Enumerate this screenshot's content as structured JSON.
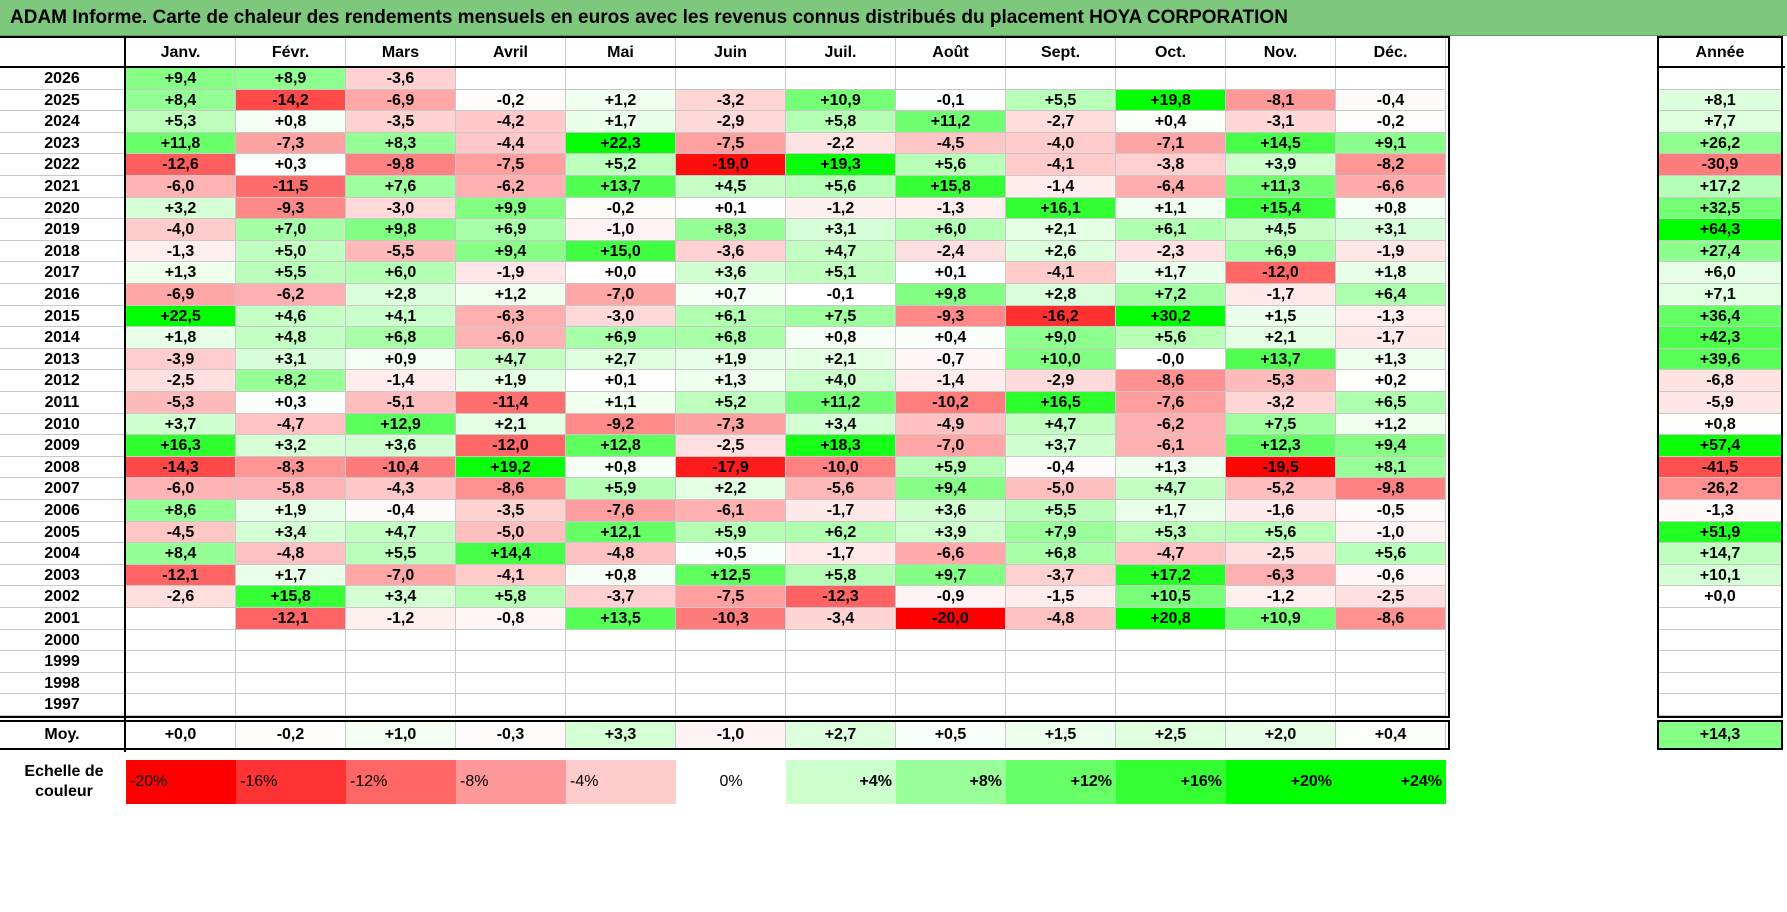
{
  "title": "ADAM Informe. Carte de chaleur des rendements mensuels en euros avec les revenus connus distribués du placement HOYA CORPORATION",
  "chart_data": {
    "type": "heatmap",
    "months": [
      "Janv.",
      "Févr.",
      "Mars",
      "Avril",
      "Mai",
      "Juin",
      "Juil.",
      "Août",
      "Sept.",
      "Oct.",
      "Nov.",
      "Déc."
    ],
    "year_header": "Année",
    "rows": [
      {
        "year": "2026",
        "months": [
          "+9,4",
          "+8,9",
          "-3,6",
          "",
          "",
          "",
          "",
          "",
          "",
          "",
          "",
          ""
        ],
        "annual": ""
      },
      {
        "year": "2025",
        "months": [
          "+8,4",
          "-14,2",
          "-6,9",
          "-0,2",
          "+1,2",
          "-3,2",
          "+10,9",
          "-0,1",
          "+5,5",
          "+19,8",
          "-8,1",
          "-0,4"
        ],
        "annual": "+8,1"
      },
      {
        "year": "2024",
        "months": [
          "+5,3",
          "+0,8",
          "-3,5",
          "-4,2",
          "+1,7",
          "-2,9",
          "+5,8",
          "+11,2",
          "-2,7",
          "+0,4",
          "-3,1",
          "-0,2"
        ],
        "annual": "+7,7"
      },
      {
        "year": "2023",
        "months": [
          "+11,8",
          "-7,3",
          "+8,3",
          "-4,4",
          "+22,3",
          "-7,5",
          "-2,2",
          "-4,5",
          "-4,0",
          "-7,1",
          "+14,5",
          "+9,1"
        ],
        "annual": "+26,2"
      },
      {
        "year": "2022",
        "months": [
          "-12,6",
          "+0,3",
          "-9,8",
          "-7,5",
          "+5,2",
          "-19,0",
          "+19,3",
          "+5,6",
          "-4,1",
          "-3,8",
          "+3,9",
          "-8,2"
        ],
        "annual": "-30,9"
      },
      {
        "year": "2021",
        "months": [
          "-6,0",
          "-11,5",
          "+7,6",
          "-6,2",
          "+13,7",
          "+4,5",
          "+5,6",
          "+15,8",
          "-1,4",
          "-6,4",
          "+11,3",
          "-6,6"
        ],
        "annual": "+17,2"
      },
      {
        "year": "2020",
        "months": [
          "+3,2",
          "-9,3",
          "-3,0",
          "+9,9",
          "-0,2",
          "+0,1",
          "-1,2",
          "-1,3",
          "+16,1",
          "+1,1",
          "+15,4",
          "+0,8"
        ],
        "annual": "+32,5"
      },
      {
        "year": "2019",
        "months": [
          "-4,0",
          "+7,0",
          "+9,8",
          "+6,9",
          "-1,0",
          "+8,3",
          "+3,1",
          "+6,0",
          "+2,1",
          "+6,1",
          "+4,5",
          "+3,1"
        ],
        "annual": "+64,3"
      },
      {
        "year": "2018",
        "months": [
          "-1,3",
          "+5,0",
          "-5,5",
          "+9,4",
          "+15,0",
          "-3,6",
          "+4,7",
          "-2,4",
          "+2,6",
          "-2,3",
          "+6,9",
          "-1,9"
        ],
        "annual": "+27,4"
      },
      {
        "year": "2017",
        "months": [
          "+1,3",
          "+5,5",
          "+6,0",
          "-1,9",
          "+0,0",
          "+3,6",
          "+5,1",
          "+0,1",
          "-4,1",
          "+1,7",
          "-12,0",
          "+1,8"
        ],
        "annual": "+6,0"
      },
      {
        "year": "2016",
        "months": [
          "-6,9",
          "-6,2",
          "+2,8",
          "+1,2",
          "-7,0",
          "+0,7",
          "-0,1",
          "+9,8",
          "+2,8",
          "+7,2",
          "-1,7",
          "+6,4"
        ],
        "annual": "+7,1"
      },
      {
        "year": "2015",
        "months": [
          "+22,5",
          "+4,6",
          "+4,1",
          "-6,3",
          "-3,0",
          "+6,1",
          "+7,5",
          "-9,3",
          "-16,2",
          "+30,2",
          "+1,5",
          "-1,3"
        ],
        "annual": "+36,4"
      },
      {
        "year": "2014",
        "months": [
          "+1,8",
          "+4,8",
          "+6,8",
          "-6,0",
          "+6,9",
          "+6,8",
          "+0,8",
          "+0,4",
          "+9,0",
          "+5,6",
          "+2,1",
          "-1,7"
        ],
        "annual": "+42,3"
      },
      {
        "year": "2013",
        "months": [
          "-3,9",
          "+3,1",
          "+0,9",
          "+4,7",
          "+2,7",
          "+1,9",
          "+2,1",
          "-0,7",
          "+10,0",
          "-0,0",
          "+13,7",
          "+1,3"
        ],
        "annual": "+39,6"
      },
      {
        "year": "2012",
        "months": [
          "-2,5",
          "+8,2",
          "-1,4",
          "+1,9",
          "+0,1",
          "+1,3",
          "+4,0",
          "-1,4",
          "-2,9",
          "-8,6",
          "-5,3",
          "+0,2"
        ],
        "annual": "-6,8"
      },
      {
        "year": "2011",
        "months": [
          "-5,3",
          "+0,3",
          "-5,1",
          "-11,4",
          "+1,1",
          "+5,2",
          "+11,2",
          "-10,2",
          "+16,5",
          "-7,6",
          "-3,2",
          "+6,5"
        ],
        "annual": "-5,9"
      },
      {
        "year": "2010",
        "months": [
          "+3,7",
          "-4,7",
          "+12,9",
          "+2,1",
          "-9,2",
          "-7,3",
          "+3,4",
          "-4,9",
          "+4,7",
          "-6,2",
          "+7,5",
          "+1,2"
        ],
        "annual": "+0,8"
      },
      {
        "year": "2009",
        "months": [
          "+16,3",
          "+3,2",
          "+3,6",
          "-12,0",
          "+12,8",
          "-2,5",
          "+18,3",
          "-7,0",
          "+3,7",
          "-6,1",
          "+12,3",
          "+9,4"
        ],
        "annual": "+57,4"
      },
      {
        "year": "2008",
        "months": [
          "-14,3",
          "-8,3",
          "-10,4",
          "+19,2",
          "+0,8",
          "-17,9",
          "-10,0",
          "+5,9",
          "-0,4",
          "+1,3",
          "-19,5",
          "+8,1"
        ],
        "annual": "-41,5"
      },
      {
        "year": "2007",
        "months": [
          "-6,0",
          "-5,8",
          "-4,3",
          "-8,6",
          "+5,9",
          "+2,2",
          "-5,6",
          "+9,4",
          "-5,0",
          "+4,7",
          "-5,2",
          "-9,8"
        ],
        "annual": "-26,2"
      },
      {
        "year": "2006",
        "months": [
          "+8,6",
          "+1,9",
          "-0,4",
          "-3,5",
          "-7,6",
          "-6,1",
          "-1,7",
          "+3,6",
          "+5,5",
          "+1,7",
          "-1,6",
          "-0,5"
        ],
        "annual": "-1,3"
      },
      {
        "year": "2005",
        "months": [
          "-4,5",
          "+3,4",
          "+4,7",
          "-5,0",
          "+12,1",
          "+5,9",
          "+6,2",
          "+3,9",
          "+7,9",
          "+5,3",
          "+5,6",
          "-1,0"
        ],
        "annual": "+51,9"
      },
      {
        "year": "2004",
        "months": [
          "+8,4",
          "-4,8",
          "+5,5",
          "+14,4",
          "-4,8",
          "+0,5",
          "-1,7",
          "-6,6",
          "+6,8",
          "-4,7",
          "-2,5",
          "+5,6"
        ],
        "annual": "+14,7"
      },
      {
        "year": "2003",
        "months": [
          "-12,1",
          "+1,7",
          "-7,0",
          "-4,1",
          "+0,8",
          "+12,5",
          "+5,8",
          "+9,7",
          "-3,7",
          "+17,2",
          "-6,3",
          "-0,6"
        ],
        "annual": "+10,1"
      },
      {
        "year": "2002",
        "months": [
          "-2,6",
          "+15,8",
          "+3,4",
          "+5,8",
          "-3,7",
          "-7,5",
          "-12,3",
          "-0,9",
          "-1,5",
          "+10,5",
          "-1,2",
          "-2,5"
        ],
        "annual": "+0,0"
      },
      {
        "year": "2001",
        "months": [
          "",
          "-12,1",
          "-1,2",
          "-0,8",
          "+13,5",
          "-10,3",
          "-3,4",
          "-20,0",
          "-4,8",
          "+20,8",
          "+10,9",
          "-8,6"
        ],
        "annual": ""
      },
      {
        "year": "2000",
        "months": [
          "",
          "",
          "",
          "",
          "",
          "",
          "",
          "",
          "",
          "",
          "",
          ""
        ],
        "annual": ""
      },
      {
        "year": "1999",
        "months": [
          "",
          "",
          "",
          "",
          "",
          "",
          "",
          "",
          "",
          "",
          "",
          ""
        ],
        "annual": ""
      },
      {
        "year": "1998",
        "months": [
          "",
          "",
          "",
          "",
          "",
          "",
          "",
          "",
          "",
          "",
          "",
          ""
        ],
        "annual": ""
      },
      {
        "year": "1997",
        "months": [
          "",
          "",
          "",
          "",
          "",
          "",
          "",
          "",
          "",
          "",
          "",
          ""
        ],
        "annual": ""
      }
    ],
    "average": {
      "label": "Moy.",
      "months": [
        "+0,0",
        "-0,2",
        "+1,0",
        "-0,3",
        "+3,3",
        "-1,0",
        "+2,7",
        "+0,5",
        "+1,5",
        "+2,5",
        "+2,0",
        "+0,4"
      ],
      "annual": "+14,3"
    },
    "color_scale": {
      "label": "Echelle de couleur",
      "steps": [
        "-20%",
        "-16%",
        "-12%",
        "-8%",
        "-4%",
        "0%",
        "+4%",
        "+8%",
        "+12%",
        "+16%",
        "+20%",
        "+24%"
      ]
    },
    "colors": {
      "negative_max": "#ff0000",
      "positive_max": "#00ff00",
      "neutral": "#ffffff",
      "title_bg": "#7ec87e"
    }
  }
}
